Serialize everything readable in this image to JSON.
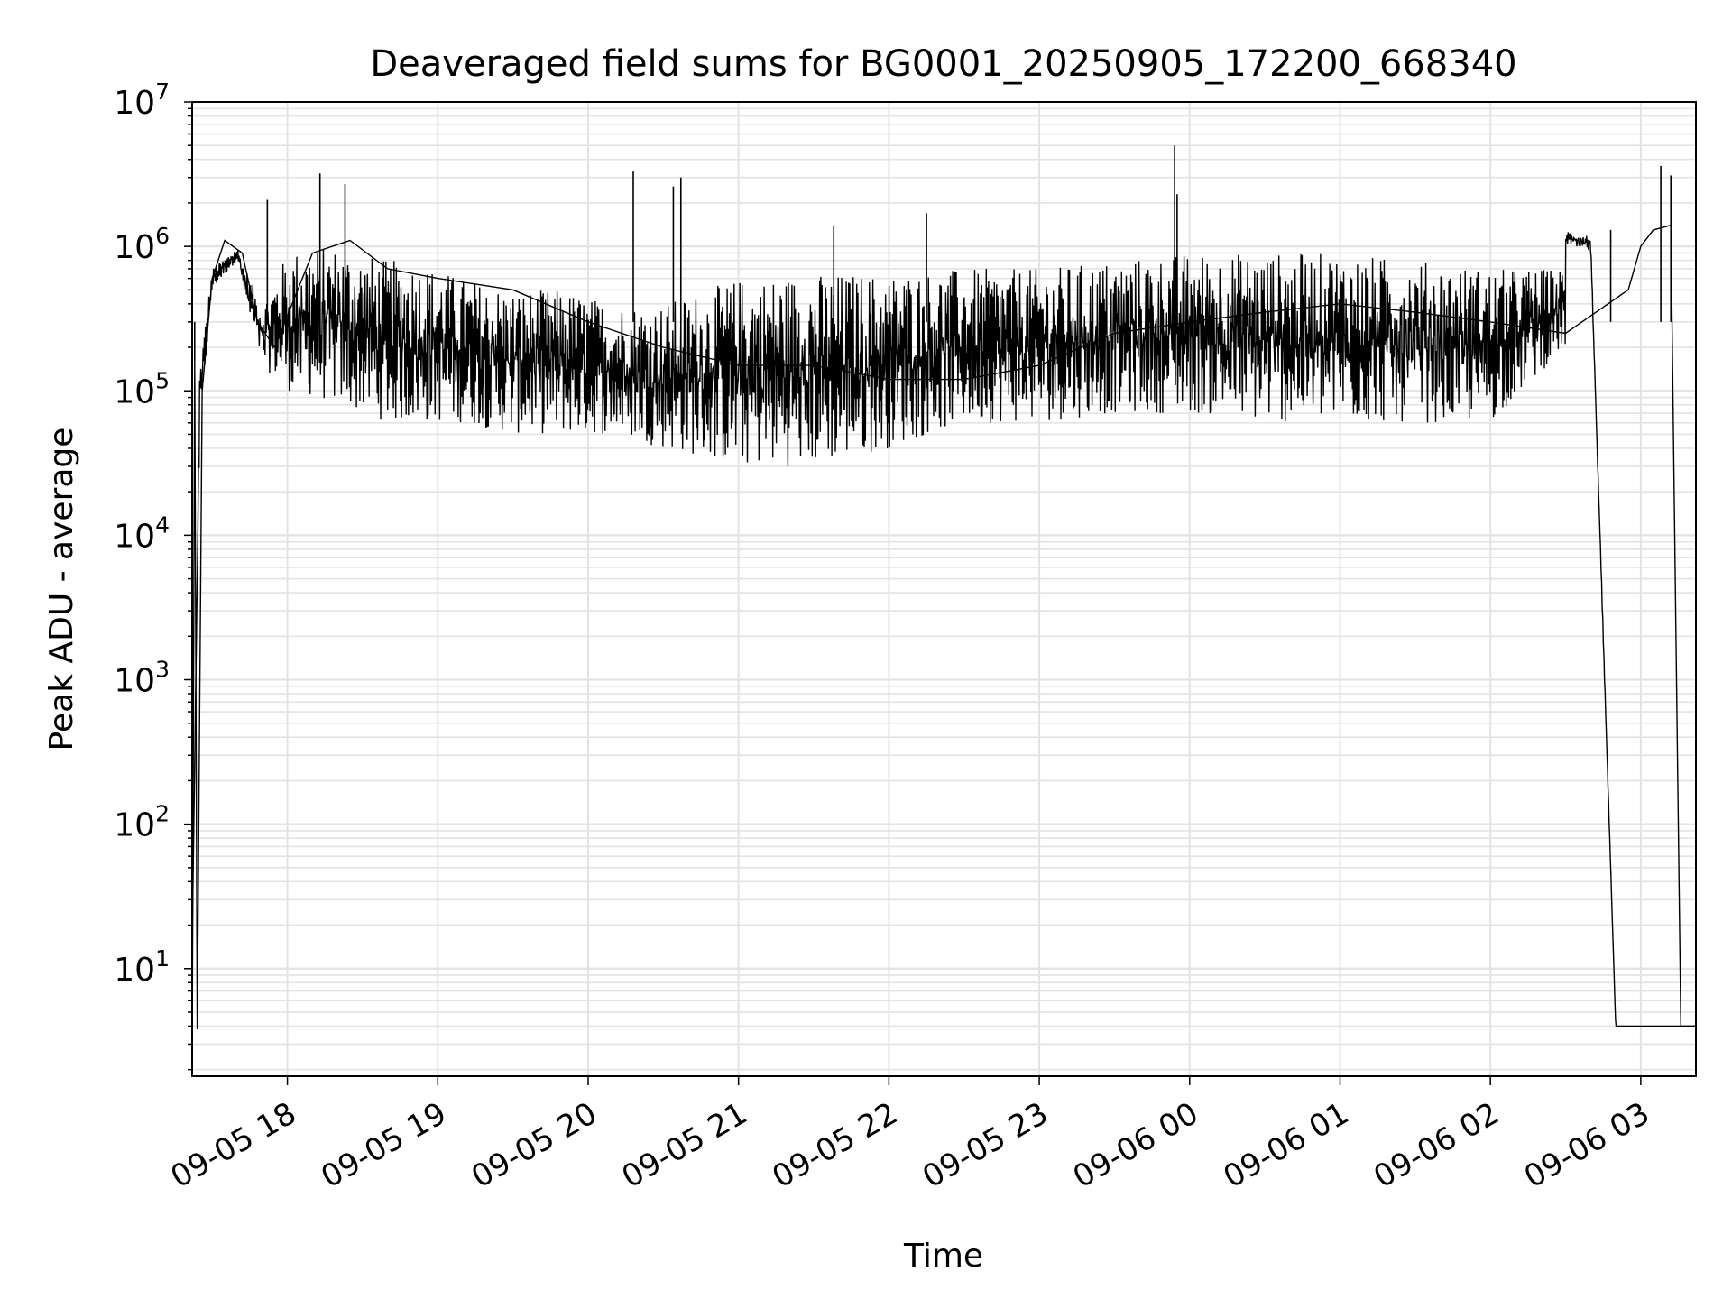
{
  "chart_data": {
    "type": "line",
    "title": "Deaveraged field sums for BG0001_20250905_172200_668340",
    "xlabel": "Time",
    "ylabel": "Peak ADU - average",
    "yscale": "log",
    "ylim": [
      1.8,
      10000000
    ],
    "xlim": [
      "09-05 17:22",
      "09-06 03:22"
    ],
    "grid": true,
    "x_tick_labels": [
      "09-05 18",
      "09-05 19",
      "09-05 20",
      "09-05 21",
      "09-05 22",
      "09-05 23",
      "09-06 00",
      "09-06 01",
      "09-06 02",
      "09-06 03"
    ],
    "y_tick_labels": [
      {
        "base": "10",
        "exp": "1"
      },
      {
        "base": "10",
        "exp": "2"
      },
      {
        "base": "10",
        "exp": "3"
      },
      {
        "base": "10",
        "exp": "4"
      },
      {
        "base": "10",
        "exp": "5"
      },
      {
        "base": "10",
        "exp": "6"
      },
      {
        "base": "10",
        "exp": "7"
      }
    ],
    "line_color": "#000000",
    "grid_color": "#e3e3e3",
    "envelope": {
      "x_minutes_from_1700": [
        22,
        25,
        30,
        40,
        45,
        50,
        60,
        70,
        80,
        90,
        100,
        110,
        120,
        130,
        150,
        170,
        190,
        210,
        240,
        270,
        300,
        330,
        360,
        390,
        420,
        450,
        480,
        510,
        540,
        570,
        570,
        580,
        590
      ],
      "upper": [
        100,
        150000,
        700000,
        1000000,
        600000,
        400000,
        900000,
        1000000,
        1000000,
        900000,
        800000,
        800000,
        700000,
        600000,
        500000,
        500000,
        400000,
        400000,
        600000,
        650000,
        650000,
        700000,
        700000,
        800000,
        900000,
        900000,
        900000,
        800000,
        700000,
        700000,
        1300000,
        1200000,
        4
      ],
      "lower": [
        2,
        50000,
        500000,
        800000,
        300000,
        150000,
        100000,
        90000,
        80000,
        70000,
        60000,
        60000,
        60000,
        60000,
        50000,
        50000,
        50000,
        40000,
        30000,
        30000,
        40000,
        60000,
        60000,
        70000,
        70000,
        60000,
        60000,
        60000,
        60000,
        200000,
        1000000,
        900000,
        4
      ]
    },
    "spikes": [
      {
        "x": "09-05 17:23",
        "y": 160000
      },
      {
        "x": "09-05 17:52",
        "y": 2100000
      },
      {
        "x": "09-05 18:13",
        "y": 3200000
      },
      {
        "x": "09-05 18:23",
        "y": 2700000
      },
      {
        "x": "09-05 20:18",
        "y": 3300000
      },
      {
        "x": "09-05 20:34",
        "y": 2600000
      },
      {
        "x": "09-05 20:37",
        "y": 3000000
      },
      {
        "x": "09-05 21:38",
        "y": 1400000
      },
      {
        "x": "09-05 22:15",
        "y": 1700000
      },
      {
        "x": "09-05 23:54",
        "y": 5000000
      },
      {
        "x": "09-05 23:55",
        "y": 2300000
      },
      {
        "x": "09-06 02:48",
        "y": 1300000
      },
      {
        "x": "09-06 03:08",
        "y": 3600000
      },
      {
        "x": "09-06 03:12",
        "y": 3100000
      }
    ],
    "series": [
      {
        "points": [
          [
            "09-05 17:22",
            2
          ],
          [
            "09-05 17:23",
            160000
          ],
          [
            "09-05 17:24",
            3.8
          ],
          [
            "09-05 17:26",
            100000
          ],
          [
            "09-05 17:30",
            600000
          ],
          [
            "09-05 17:35",
            1100000
          ],
          [
            "09-05 17:42",
            900000
          ],
          [
            "09-05 17:48",
            300000
          ],
          [
            "09-05 17:55",
            200000
          ],
          [
            "09-05 18:10",
            900000
          ],
          [
            "09-05 18:25",
            1100000
          ],
          [
            "09-05 18:40",
            700000
          ],
          [
            "09-05 19:00",
            600000
          ],
          [
            "09-05 19:30",
            500000
          ],
          [
            "09-05 20:00",
            300000
          ],
          [
            "09-05 20:30",
            200000
          ],
          [
            "09-05 21:00",
            150000
          ],
          [
            "09-05 21:30",
            150000
          ],
          [
            "09-05 22:00",
            120000
          ],
          [
            "09-05 22:30",
            120000
          ],
          [
            "09-05 23:00",
            150000
          ],
          [
            "09-05 23:30",
            250000
          ],
          [
            "09-06 00:00",
            300000
          ],
          [
            "09-06 00:30",
            350000
          ],
          [
            "09-06 01:00",
            400000
          ],
          [
            "09-06 01:30",
            350000
          ],
          [
            "09-06 02:00",
            300000
          ],
          [
            "09-06 02:30",
            250000
          ],
          [
            "09-06 02:55",
            500000
          ],
          [
            "09-06 03:00",
            1000000
          ],
          [
            "09-06 03:05",
            1300000
          ],
          [
            "09-06 03:12",
            1400000
          ],
          [
            "09-06 03:16",
            4
          ],
          [
            "09-06 03:22",
            4
          ]
        ]
      }
    ]
  }
}
